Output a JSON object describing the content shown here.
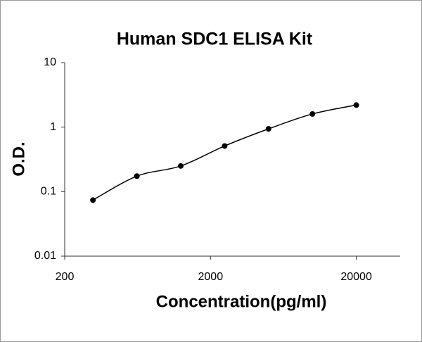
{
  "chart_data": {
    "type": "scatter",
    "title": "Human SDC1 ELISA Kit",
    "x_label": "Concentration(pg/ml)",
    "y_label": "O.D.",
    "x": [
      312.5,
      625,
      1250,
      2500,
      5000,
      10000,
      20000
    ],
    "series": [
      {
        "color": "#000000",
        "values": [
          0.074,
          0.174,
          0.25,
          0.51,
          0.94,
          1.6,
          2.2
        ]
      }
    ],
    "xlim": [
      200,
      40000
    ],
    "xticks": [
      200,
      2000,
      20000
    ],
    "ylim": [
      0.01,
      10
    ],
    "yticks": [
      10,
      1,
      0.1,
      0.01
    ],
    "x_log": true,
    "y_log": true,
    "grid": false
  }
}
